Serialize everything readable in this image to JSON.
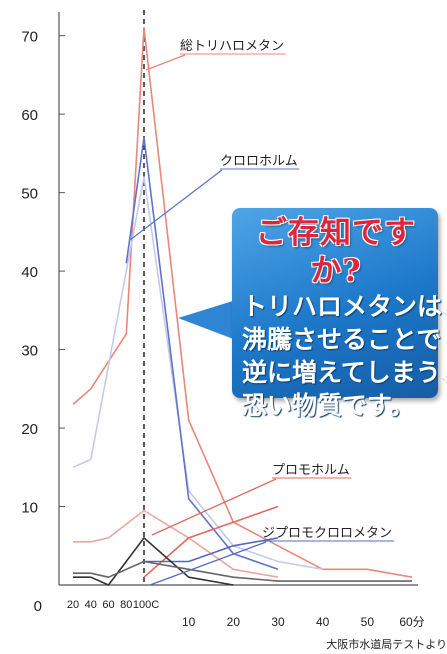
{
  "chart_data": {
    "type": "line",
    "y_ticks": [
      0,
      10,
      20,
      30,
      40,
      50,
      60,
      70
    ],
    "ylim": [
      0,
      72
    ],
    "x_ticks_heating": [
      "20",
      "40",
      "60",
      "80",
      "100C"
    ],
    "x_ticks_time": [
      "10",
      "20",
      "30",
      "40",
      "50",
      "60分"
    ],
    "grid": false,
    "source": "大阪市水道局テストより",
    "series": [
      {
        "name": "総トリハロメタン",
        "color": "#e8877a",
        "points": [
          [
            20,
            23
          ],
          [
            40,
            25
          ],
          [
            80,
            32
          ],
          [
            100,
            71
          ],
          [
            10,
            21
          ],
          [
            20,
            8
          ],
          [
            30,
            5
          ],
          [
            40,
            2
          ],
          [
            50,
            2
          ],
          [
            60,
            1
          ]
        ]
      },
      {
        "name": "",
        "color": "#c4c9ee",
        "points": [
          [
            20,
            15
          ],
          [
            40,
            16
          ],
          [
            80,
            40
          ],
          [
            100,
            52
          ],
          [
            10,
            12
          ],
          [
            20,
            5
          ],
          [
            30,
            3
          ],
          [
            40,
            2
          ]
        ]
      },
      {
        "name": "クロロホルム",
        "color": "#5f74c9",
        "points": [
          [
            80,
            41
          ],
          [
            100,
            57
          ],
          [
            10,
            11
          ],
          [
            20,
            4
          ],
          [
            30,
            2
          ]
        ]
      },
      {
        "name": "",
        "color": "#e8a8a0",
        "points": [
          [
            20,
            5.5
          ],
          [
            40,
            5.5
          ],
          [
            60,
            6
          ],
          [
            100,
            9.5
          ],
          [
            10,
            6
          ],
          [
            20,
            2
          ],
          [
            30,
            1
          ]
        ]
      },
      {
        "name": "プロモホルム",
        "color": "#e0695c",
        "points": [
          [
            100,
            1
          ],
          [
            10,
            6
          ],
          [
            20,
            8
          ],
          [
            30,
            10
          ]
        ]
      },
      {
        "name": "ジプロモクロロメタン",
        "color": "#5469c0",
        "points": [
          [
            100,
            3
          ],
          [
            10,
            3
          ],
          [
            20,
            5
          ],
          [
            30,
            6
          ]
        ]
      },
      {
        "name": "",
        "color": "#333333",
        "points": [
          [
            20,
            1
          ],
          [
            40,
            1
          ],
          [
            60,
            0
          ],
          [
            100,
            6
          ],
          [
            10,
            1
          ],
          [
            20,
            0
          ]
        ]
      },
      {
        "name": "",
        "color": "#666666",
        "points": [
          [
            20,
            1.5
          ],
          [
            40,
            1.5
          ],
          [
            60,
            1
          ],
          [
            100,
            3
          ],
          [
            10,
            2
          ],
          [
            20,
            1
          ],
          [
            30,
            0.5
          ],
          [
            40,
            0.5
          ],
          [
            50,
            0.5
          ],
          [
            60,
            0.5
          ]
        ]
      }
    ],
    "labels": [
      "総トリハロメタン",
      "クロロホルム",
      "プロモホルム",
      "ジプロモクロロメタン"
    ]
  },
  "callout": {
    "title": "ご存知ですか?",
    "lines": [
      "トリハロメタンは、",
      "沸騰させることで",
      "逆に増えてしまう、",
      "恐い物質です。"
    ]
  }
}
